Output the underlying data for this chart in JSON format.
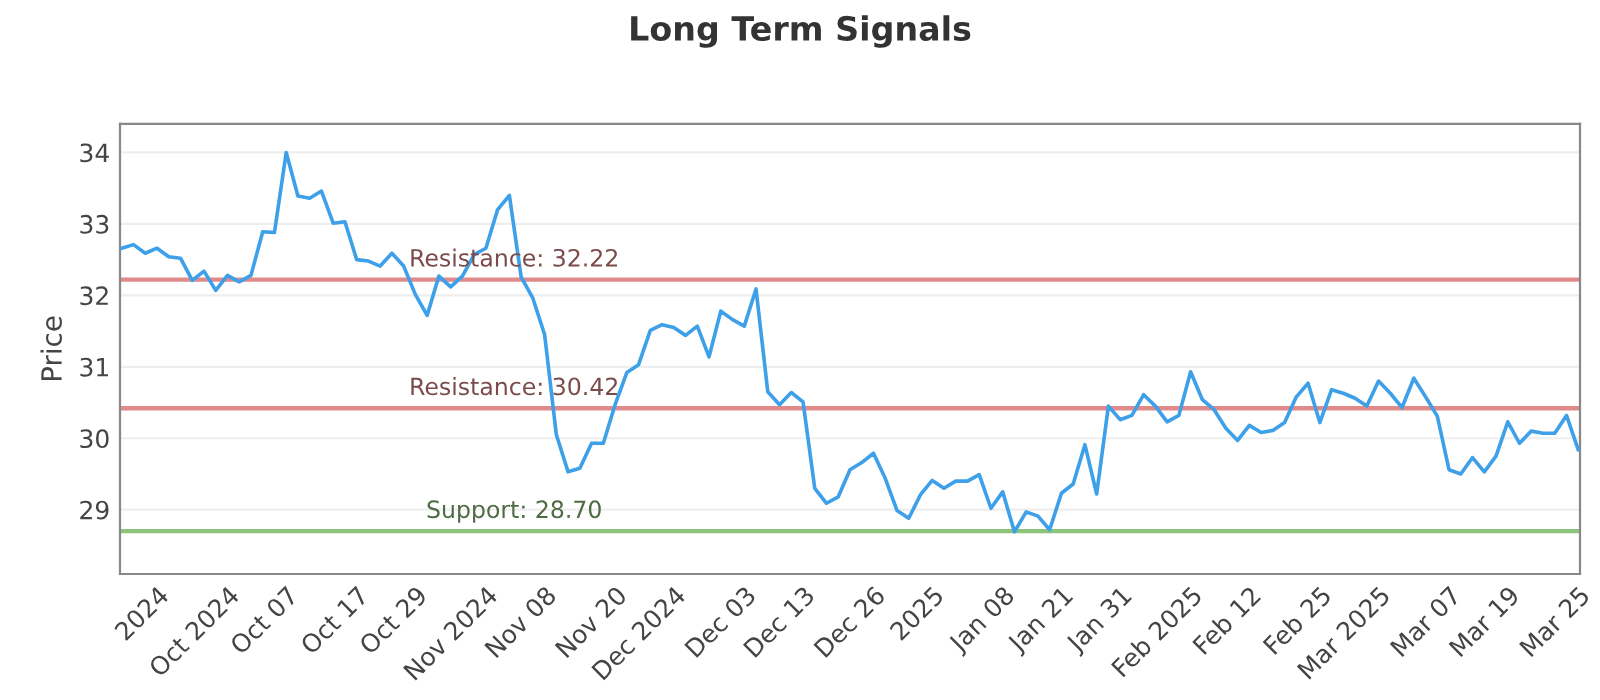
{
  "chart_data": {
    "type": "line",
    "title": "Long Term Signals",
    "ylabel": "Price",
    "categories": [
      null,
      null,
      null,
      "2024",
      null,
      null,
      null,
      null,
      null,
      "Oct 2024",
      null,
      null,
      null,
      null,
      "Oct 07",
      null,
      null,
      null,
      null,
      null,
      "Oct 17",
      null,
      null,
      null,
      null,
      "Oct 29",
      null,
      null,
      null,
      null,
      null,
      "Nov 2024",
      null,
      null,
      null,
      null,
      "Nov 08",
      null,
      null,
      null,
      null,
      null,
      "Nov 20",
      null,
      null,
      null,
      null,
      "Dec 2024",
      null,
      null,
      null,
      null,
      null,
      "Dec 03",
      null,
      null,
      null,
      null,
      "Dec 13",
      null,
      null,
      null,
      null,
      null,
      "Dec 26",
      null,
      null,
      null,
      null,
      "2025",
      null,
      null,
      null,
      null,
      null,
      "Jan 08",
      null,
      null,
      null,
      null,
      "Jan 21",
      null,
      null,
      null,
      null,
      "Jan 31",
      null,
      null,
      null,
      null,
      null,
      "Feb 2025",
      null,
      null,
      null,
      null,
      "Feb 12",
      null,
      null,
      null,
      null,
      null,
      "Feb 25",
      null,
      null,
      null,
      null,
      "Mar 2025",
      null,
      null,
      null,
      null,
      null,
      "Mar 07",
      null,
      null,
      null,
      null,
      "Mar 19",
      null,
      null,
      null,
      null,
      null,
      "Mar 25"
    ],
    "series": [
      {
        "color": "#3ea0e8",
        "values": [
          32.66,
          32.71,
          32.59,
          32.66,
          32.54,
          32.52,
          32.21,
          32.34,
          32.07,
          32.28,
          32.19,
          32.28,
          32.89,
          32.88,
          34.0,
          33.39,
          33.36,
          33.46,
          33.01,
          33.03,
          32.5,
          32.48,
          32.41,
          32.59,
          32.41,
          32.01,
          31.72,
          32.27,
          32.12,
          32.27,
          32.57,
          32.66,
          33.2,
          33.4,
          32.26,
          31.96,
          31.45,
          30.05,
          29.53,
          29.58,
          29.93,
          29.93,
          30.47,
          30.92,
          31.03,
          31.51,
          31.59,
          31.55,
          31.44,
          31.57,
          31.14,
          31.78,
          31.66,
          31.57,
          32.09,
          30.65,
          30.47,
          30.64,
          30.51,
          29.3,
          29.09,
          29.18,
          29.56,
          29.66,
          29.79,
          29.44,
          28.99,
          28.88,
          29.21,
          29.41,
          29.3,
          29.4,
          29.4,
          29.49,
          29.02,
          29.25,
          28.69,
          28.97,
          28.91,
          28.72,
          29.23,
          29.36,
          29.91,
          29.22,
          30.45,
          30.26,
          30.32,
          30.61,
          30.45,
          30.23,
          30.32,
          30.93,
          30.54,
          30.4,
          30.14,
          29.97,
          30.18,
          30.08,
          30.11,
          30.22,
          30.58,
          30.77,
          30.22,
          30.68,
          30.63,
          30.56,
          30.45,
          30.8,
          30.63,
          30.43,
          30.84,
          30.58,
          30.31,
          29.56,
          29.5,
          29.73,
          29.53,
          29.75,
          30.23,
          29.93,
          30.1,
          30.07,
          30.07,
          30.32,
          29.84
        ]
      }
    ],
    "ylim": [
      28.1,
      34.4
    ],
    "yticks": [
      29,
      30,
      31,
      32,
      33,
      34
    ],
    "ref_lines": [
      {
        "axis": "y",
        "value": 32.22,
        "label": "Resistance: 32.22",
        "color": "#e08a8a"
      },
      {
        "axis": "y",
        "value": 30.42,
        "label": "Resistance: 30.42",
        "color": "#e08a8a"
      },
      {
        "axis": "y",
        "value": 28.7,
        "label": "Support: 28.70",
        "color": "#8cc47c"
      }
    ],
    "grid": "y",
    "legend": false,
    "marker": "none",
    "line_style": "solid"
  }
}
